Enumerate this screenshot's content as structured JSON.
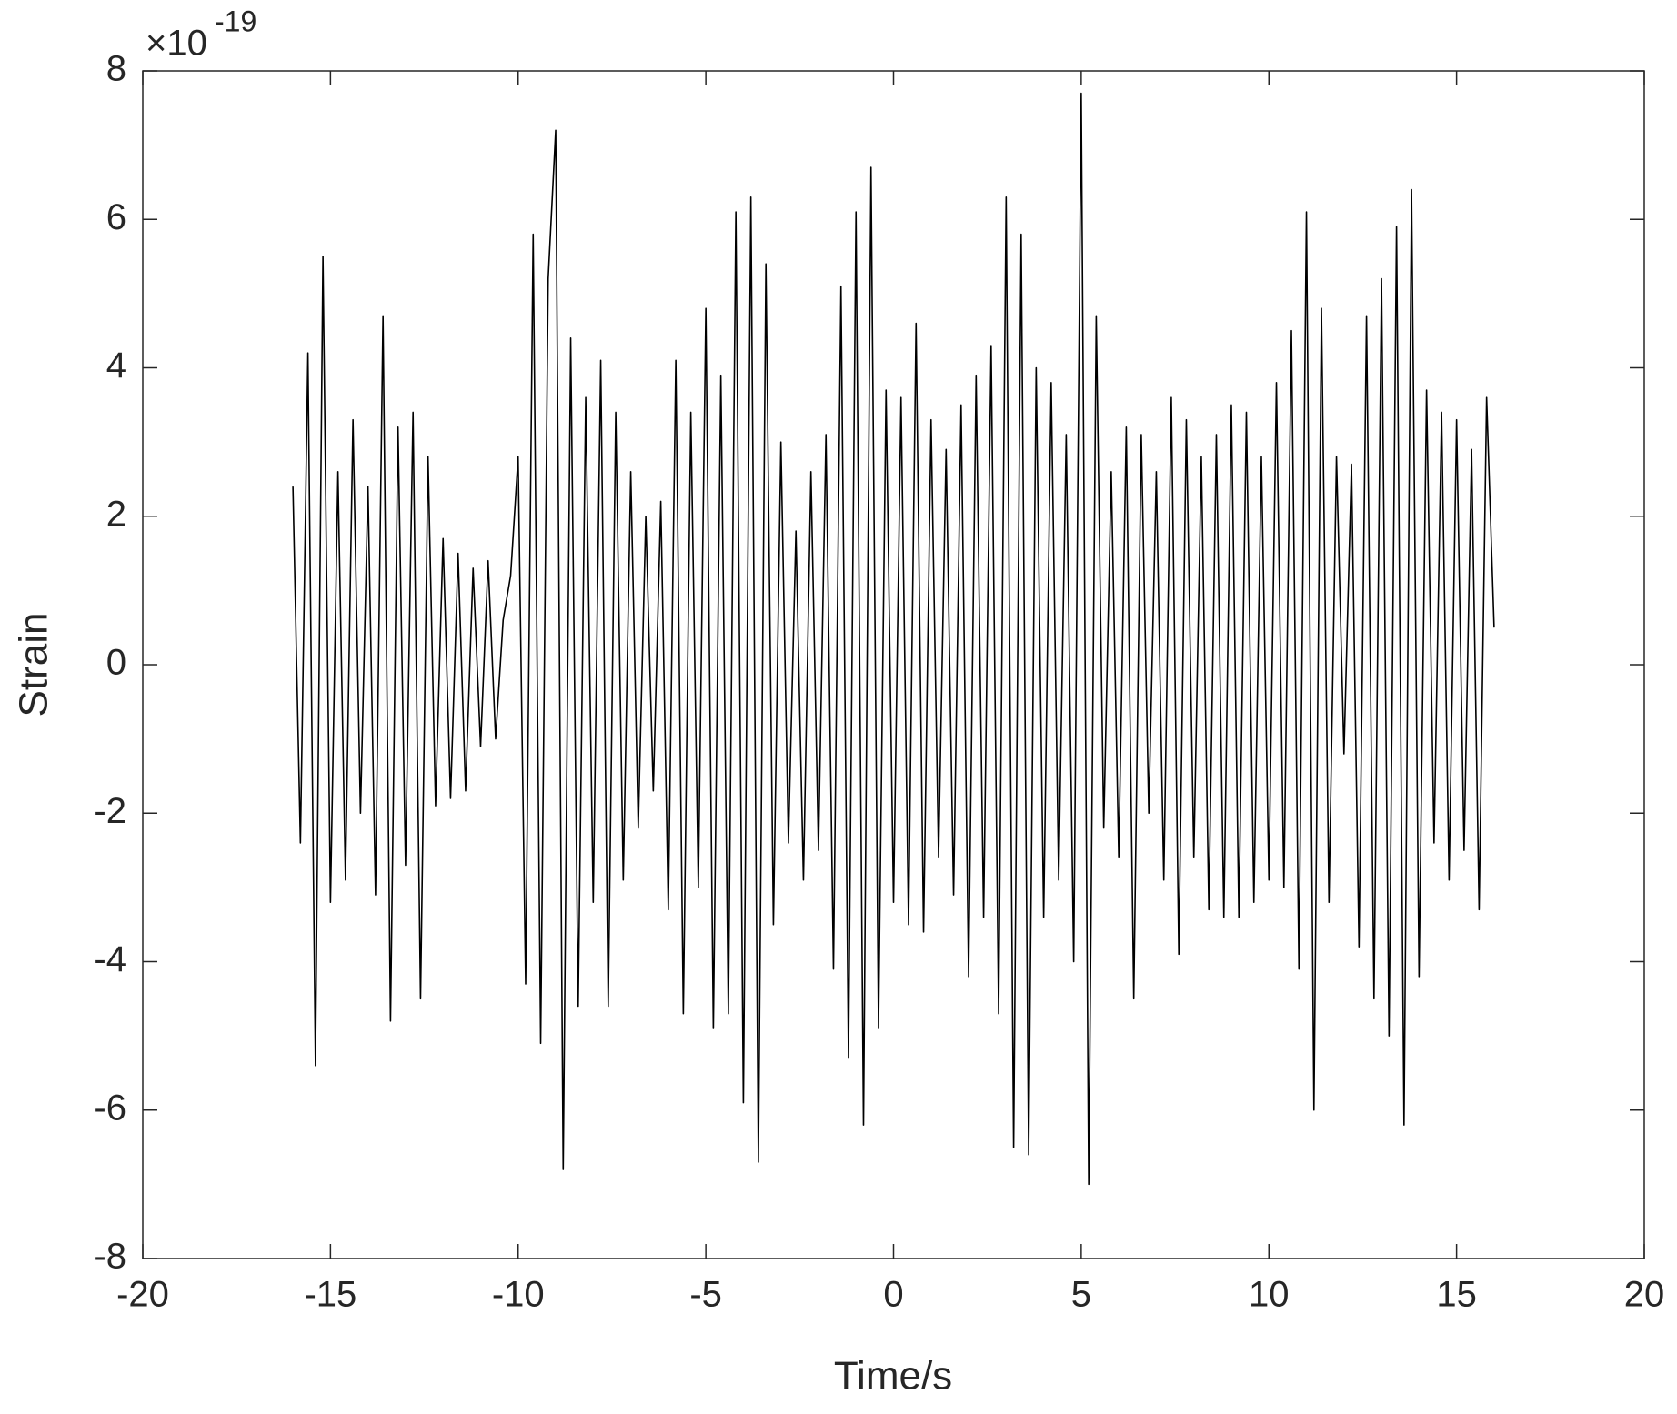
{
  "chart_data": {
    "type": "line",
    "y_multiplier": "×10",
    "y_multiplier_power": "-19",
    "x_label": "Time/s",
    "y_label": "Strain",
    "color": "#000000",
    "xlim": [
      -20,
      20
    ],
    "xticks": [
      -20,
      -15,
      -10,
      -5,
      0,
      5,
      10,
      15,
      20
    ],
    "ylim": [
      -8,
      8
    ],
    "yticks": [
      -8,
      -6,
      -4,
      -2,
      0,
      2,
      4,
      6,
      8
    ],
    "grid": false,
    "x": [
      -16,
      -15.8,
      -15.6,
      -15.4,
      -15.2,
      -15,
      -14.8,
      -14.6,
      -14.4,
      -14.2,
      -14,
      -13.8,
      -13.6,
      -13.4,
      -13.2,
      -13,
      -12.8,
      -12.6,
      -12.4,
      -12.2,
      -12,
      -11.8,
      -11.6,
      -11.4,
      -11.2,
      -11,
      -10.8,
      -10.6,
      -10.4,
      -10.2,
      -10,
      -9.8,
      -9.6,
      -9.4,
      -9.2,
      -9,
      -8.8,
      -8.6,
      -8.4,
      -8.2,
      -8,
      -7.8,
      -7.6,
      -7.4,
      -7.2,
      -7,
      -6.8,
      -6.6,
      -6.4,
      -6.2,
      -6,
      -5.8,
      -5.6,
      -5.4,
      -5.2,
      -5,
      -4.8,
      -4.6,
      -4.4,
      -4.2,
      -4,
      -3.8,
      -3.6,
      -3.4,
      -3.2,
      -3,
      -2.8,
      -2.6,
      -2.4,
      -2.2,
      -2,
      -1.8,
      -1.6,
      -1.4,
      -1.2,
      -1,
      -0.8,
      -0.6,
      -0.4,
      -0.2,
      0,
      0.2,
      0.4,
      0.6,
      0.8,
      1,
      1.2,
      1.4,
      1.6,
      1.8,
      2,
      2.2,
      2.4,
      2.6,
      2.8,
      3,
      3.2,
      3.4,
      3.6,
      3.8,
      4,
      4.2,
      4.4,
      4.6,
      4.8,
      5,
      5.2,
      5.4,
      5.6,
      5.8,
      6,
      6.2,
      6.4,
      6.6,
      6.8,
      7,
      7.2,
      7.4,
      7.6,
      7.8,
      8,
      8.2,
      8.4,
      8.6,
      8.8,
      9,
      9.2,
      9.4,
      9.6,
      9.8,
      10,
      10.2,
      10.4,
      10.6,
      10.8,
      11,
      11.2,
      11.4,
      11.6,
      11.8,
      12,
      12.2,
      12.4,
      12.6,
      12.8,
      13,
      13.2,
      13.4,
      13.6,
      13.8,
      14,
      14.2,
      14.4,
      14.6,
      14.8,
      15,
      15.2,
      15.4,
      15.6,
      15.8,
      16
    ],
    "values": [
      2.4,
      -2.4,
      4.2,
      -5.4,
      5.5,
      -3.2,
      2.6,
      -2.9,
      3.3,
      -2.0,
      2.4,
      -3.1,
      4.7,
      -4.8,
      3.2,
      -2.7,
      3.4,
      -4.5,
      2.8,
      -1.9,
      1.7,
      -1.8,
      1.5,
      -1.7,
      1.3,
      -1.1,
      1.4,
      -1.0,
      0.6,
      1.2,
      2.8,
      -4.3,
      5.8,
      -5.1,
      5.2,
      7.2,
      -6.8,
      4.4,
      -4.6,
      3.6,
      -3.2,
      4.1,
      -4.6,
      3.4,
      -2.9,
      2.6,
      -2.2,
      2.0,
      -1.7,
      2.2,
      -3.3,
      4.1,
      -4.7,
      3.4,
      -3.0,
      4.8,
      -4.9,
      3.9,
      -4.7,
      6.1,
      -5.9,
      6.3,
      -6.7,
      5.4,
      -3.5,
      3.0,
      -2.4,
      1.8,
      -2.9,
      2.6,
      -2.5,
      3.1,
      -4.1,
      5.1,
      -5.3,
      6.1,
      -6.2,
      6.7,
      -4.9,
      3.7,
      -3.2,
      3.6,
      -3.5,
      4.6,
      -3.6,
      3.3,
      -2.6,
      2.9,
      -3.1,
      3.5,
      -4.2,
      3.9,
      -3.4,
      4.3,
      -4.7,
      6.3,
      -6.5,
      5.8,
      -6.6,
      4.0,
      -3.4,
      3.8,
      -2.9,
      3.1,
      -4.0,
      7.7,
      -7.0,
      4.7,
      -2.2,
      2.6,
      -2.6,
      3.2,
      -4.5,
      3.1,
      -2.0,
      2.6,
      -2.9,
      3.6,
      -3.9,
      3.3,
      -2.6,
      2.8,
      -3.3,
      3.1,
      -3.4,
      3.5,
      -3.4,
      3.4,
      -3.2,
      2.8,
      -2.9,
      3.8,
      -3.0,
      4.5,
      -4.1,
      6.1,
      -6.0,
      4.8,
      -3.2,
      2.8,
      -1.2,
      2.7,
      -3.8,
      4.7,
      -4.5,
      5.2,
      -5.0,
      5.9,
      -6.2,
      6.4,
      -4.2,
      3.7,
      -2.4,
      3.4,
      -2.9,
      3.3,
      -2.5,
      2.9,
      -3.3,
      3.6,
      0.5
    ]
  }
}
